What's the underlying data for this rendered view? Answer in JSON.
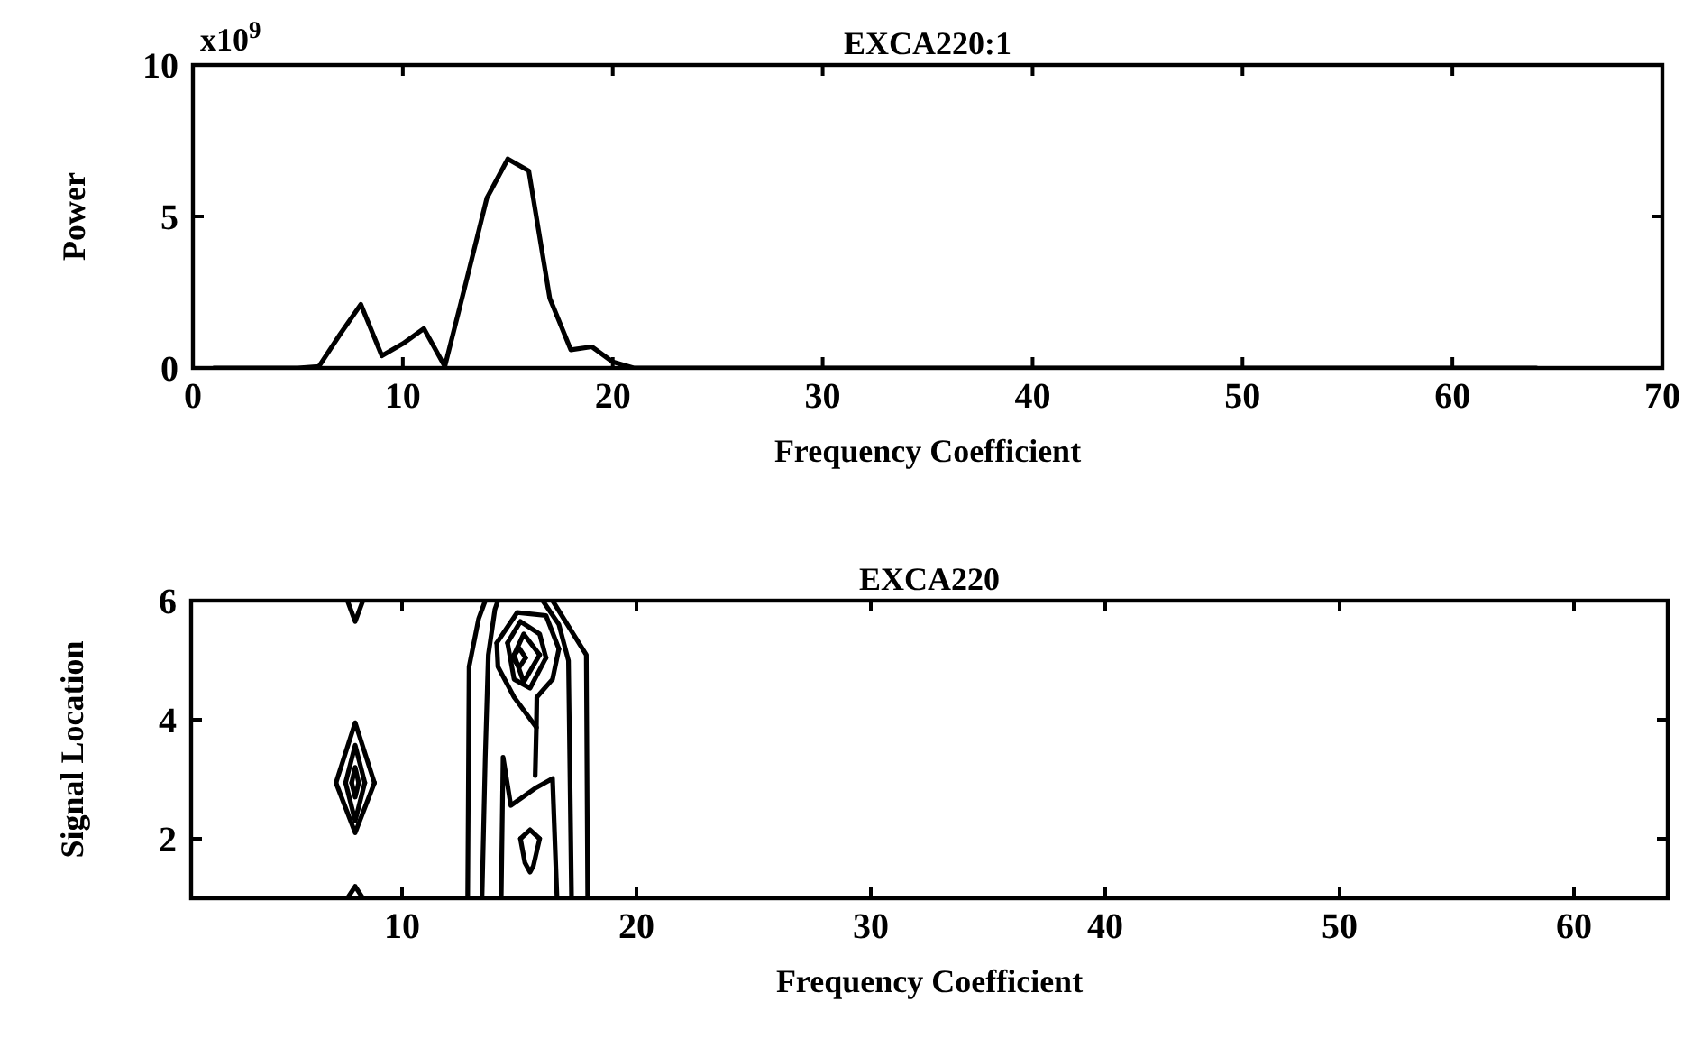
{
  "chart_data": [
    {
      "type": "line",
      "title": "EXCA220:1",
      "xlabel": "Frequency Coefficient",
      "ylabel": "Power",
      "annotations": [
        "x10$^{9}$"
      ],
      "x": [
        1,
        2,
        3,
        4,
        5,
        6,
        7,
        8,
        9,
        10,
        11,
        12,
        13,
        14,
        15,
        16,
        17,
        18,
        19,
        20,
        21,
        22,
        23,
        24,
        25,
        26,
        27,
        28,
        29,
        30,
        31,
        32,
        33,
        34,
        35,
        36,
        37,
        38,
        39,
        40,
        41,
        42,
        43,
        44,
        45,
        46,
        47,
        48,
        49,
        50,
        51,
        52,
        53,
        54,
        55,
        56,
        57,
        58,
        59,
        60,
        61,
        62,
        63,
        64
      ],
      "series": [
        {
          "color": "#000000",
          "values": [
            0,
            0,
            0,
            0,
            0,
            0.05,
            1.1,
            2.1,
            0.4,
            0.8,
            1.3,
            0.05,
            2.8,
            5.6,
            6.9,
            6.5,
            2.3,
            0.6,
            0.7,
            0.2,
            0,
            0,
            0,
            0,
            0,
            0,
            0,
            0,
            0,
            0,
            0,
            0,
            0,
            0,
            0,
            0,
            0,
            0,
            0,
            0,
            0,
            0,
            0,
            0,
            0,
            0,
            0,
            0,
            0,
            0,
            0,
            0,
            0,
            0,
            0,
            0,
            0,
            0,
            0,
            0,
            0,
            0,
            0,
            0
          ]
        }
      ],
      "xlim": [
        0,
        70
      ],
      "xticks": [
        0,
        10,
        20,
        30,
        40,
        50,
        60,
        70
      ],
      "ylim": [
        0,
        10
      ],
      "yticks": [
        0,
        5,
        10
      ],
      "grid": false
    },
    {
      "type": "line",
      "title": "EXCA220",
      "xlabel": "Frequency Coefficient",
      "ylabel": "Signal Location",
      "series": [
        {
          "color": "#000000",
          "x": [
            7.67,
            8,
            8.33
          ],
          "values": [
            6,
            5.65,
            6
          ]
        },
        {
          "color": "#000000",
          "x": [
            7.67,
            8,
            8.33
          ],
          "values": [
            1,
            1.2,
            1
          ]
        },
        {
          "color": "#000000",
          "x": [
            7.18,
            8,
            8.82
          ],
          "values": [
            2.94,
            3.95,
            2.94
          ]
        },
        {
          "color": "#000000",
          "x": [
            7.18,
            8,
            8.82
          ],
          "values": [
            2.94,
            2.1,
            2.94
          ]
        },
        {
          "color": "#000000",
          "x": [
            7.59,
            8,
            8.41
          ],
          "values": [
            2.94,
            3.57,
            2.94
          ]
        },
        {
          "color": "#000000",
          "x": [
            7.59,
            8,
            8.41
          ],
          "values": [
            2.94,
            2.3,
            2.94
          ]
        },
        {
          "color": "#000000",
          "x": [
            7.85,
            8,
            8.15
          ],
          "values": [
            2.94,
            3.2,
            2.94
          ]
        },
        {
          "color": "#000000",
          "x": [
            7.85,
            8,
            8.15
          ],
          "values": [
            2.94,
            2.7,
            2.94
          ]
        },
        {
          "color": "#000000",
          "x": [
            12.8,
            12.86,
            13.27,
            13.55
          ],
          "values": [
            1,
            4.89,
            5.7,
            6
          ]
        },
        {
          "color": "#000000",
          "x": [
            16.42,
            17.86,
            17.92
          ],
          "values": [
            6,
            5.09,
            1
          ]
        },
        {
          "color": "#000000",
          "x": [
            13.41,
            13.55,
            13.68,
            13.96,
            14.09
          ],
          "values": [
            1,
            3.37,
            5.09,
            5.85,
            6
          ]
        },
        {
          "color": "#000000",
          "x": [
            16,
            16.69,
            17.1,
            17.23
          ],
          "values": [
            6,
            5.6,
            4.99,
            1
          ]
        },
        {
          "color": "#000000",
          "x": [
            14.23,
            14.31,
            14.64,
            15.73,
            16.42,
            16.61
          ],
          "values": [
            1,
            3.37,
            2.56,
            2.86,
            3.01,
            1
          ]
        },
        {
          "color": "#000000",
          "x": [
            14.04,
            14.09,
            14.78,
            15.73
          ],
          "values": [
            5.29,
            4.89,
            4.38,
            3.87
          ]
        },
        {
          "color": "#000000",
          "x": [
            14.04,
            14.91,
            16.14,
            16.69
          ],
          "values": [
            5.29,
            5.8,
            5.75,
            5.19
          ]
        },
        {
          "color": "#000000",
          "x": [
            15.68,
            15.73,
            15.75,
            16.42,
            16.69
          ],
          "values": [
            3.06,
            3.87,
            4.38,
            4.68,
            5.19
          ]
        },
        {
          "color": "#000000",
          "x": [
            14.5,
            15.05,
            15.87,
            16.14
          ],
          "values": [
            5.29,
            5.65,
            5.44,
            5.04
          ]
        },
        {
          "color": "#000000",
          "x": [
            14.5,
            14.78,
            15.46,
            16.14
          ],
          "values": [
            5.29,
            4.68,
            4.53,
            5.04
          ]
        },
        {
          "color": "#000000",
          "x": [
            14.78,
            15.19,
            15.87
          ],
          "values": [
            5.09,
            5.44,
            5.09
          ]
        },
        {
          "color": "#000000",
          "x": [
            14.78,
            15.19,
            15.87
          ],
          "values": [
            5.09,
            4.63,
            5.09
          ]
        },
        {
          "color": "#000000",
          "x": [
            14.72,
            15,
            15.27
          ],
          "values": [
            5.04,
            5.2,
            5.04
          ]
        },
        {
          "color": "#000000",
          "x": [
            14.72,
            15,
            15.27
          ],
          "values": [
            5.04,
            4.88,
            5.04
          ]
        },
        {
          "color": "#000000",
          "x": [
            15.05,
            15.46,
            15.87
          ],
          "values": [
            2,
            2.15,
            2
          ]
        },
        {
          "color": "#000000",
          "x": [
            15.05,
            15.24,
            15.46,
            15.6,
            15.87
          ],
          "values": [
            2,
            1.6,
            1.44,
            1.54,
            2
          ]
        }
      ],
      "xlim": [
        1,
        64
      ],
      "xticks": [
        10,
        20,
        30,
        40,
        50,
        60
      ],
      "ylim": [
        1,
        6
      ],
      "yticks": [
        2,
        4,
        6
      ],
      "grid": false
    }
  ]
}
